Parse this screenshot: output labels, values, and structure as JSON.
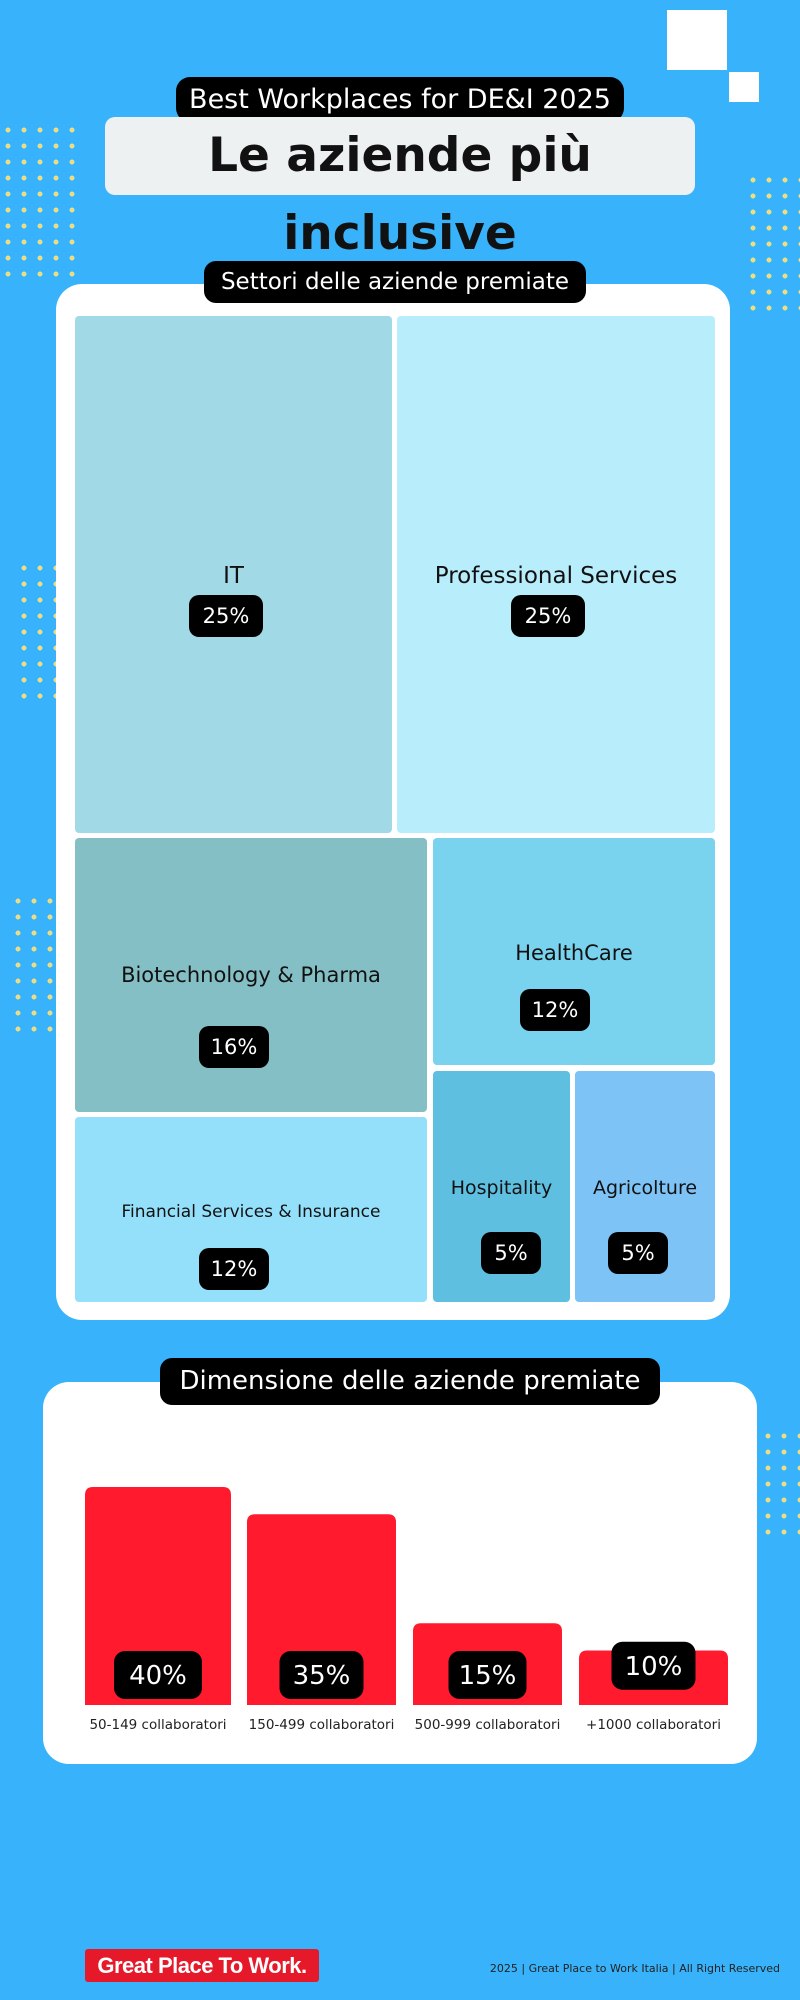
{
  "header": {
    "eyebrow": "Best Workplaces for DE&I 2025",
    "title": "Le aziende più inclusive"
  },
  "treemap": {
    "label": "Settori delle aziende premiate",
    "cells": [
      {
        "name": "IT",
        "percent": "25%",
        "color": "#a2d9e6"
      },
      {
        "name": "Professional Services",
        "percent": "25%",
        "color": "#b8edfb"
      },
      {
        "name": "Biotechnology & Pharma",
        "percent": "16%",
        "color": "#85bfc6"
      },
      {
        "name": "HealthCare",
        "percent": "12%",
        "color": "#79d3ef"
      },
      {
        "name": "Financial Services & Insurance",
        "percent": "12%",
        "color": "#94e0fa"
      },
      {
        "name": "Hospitality",
        "percent": "5%",
        "color": "#5fbfe0"
      },
      {
        "name": "Agricolture",
        "percent": "5%",
        "color": "#7ec3f6"
      }
    ]
  },
  "bars": {
    "label": "Dimensione delle aziende premiate",
    "bar_color": "#ff1a2e"
  },
  "chart_data": [
    {
      "type": "treemap",
      "title": "Settori delle aziende premiate",
      "categories": [
        "IT",
        "Professional Services",
        "Biotechnology & Pharma",
        "HealthCare",
        "Financial Services & Insurance",
        "Hospitality",
        "Agricolture"
      ],
      "values": [
        25,
        25,
        16,
        12,
        12,
        5,
        5
      ]
    },
    {
      "type": "bar",
      "title": "Dimensione delle aziende premiate",
      "categories": [
        "50-149 collaboratori",
        "150-499 collaboratori",
        "500-999 collaboratori",
        "+1000 collaboratori"
      ],
      "values": [
        40,
        35,
        15,
        10
      ],
      "labels": [
        "40%",
        "35%",
        "15%",
        "10%"
      ]
    }
  ],
  "footer": {
    "brand": "Great Place To Work.",
    "credits": "2025 | Great Place to Work Italia | All Right Reserved"
  },
  "colors": {
    "background": "#38b3fb",
    "accent": "#ff1a2e"
  }
}
